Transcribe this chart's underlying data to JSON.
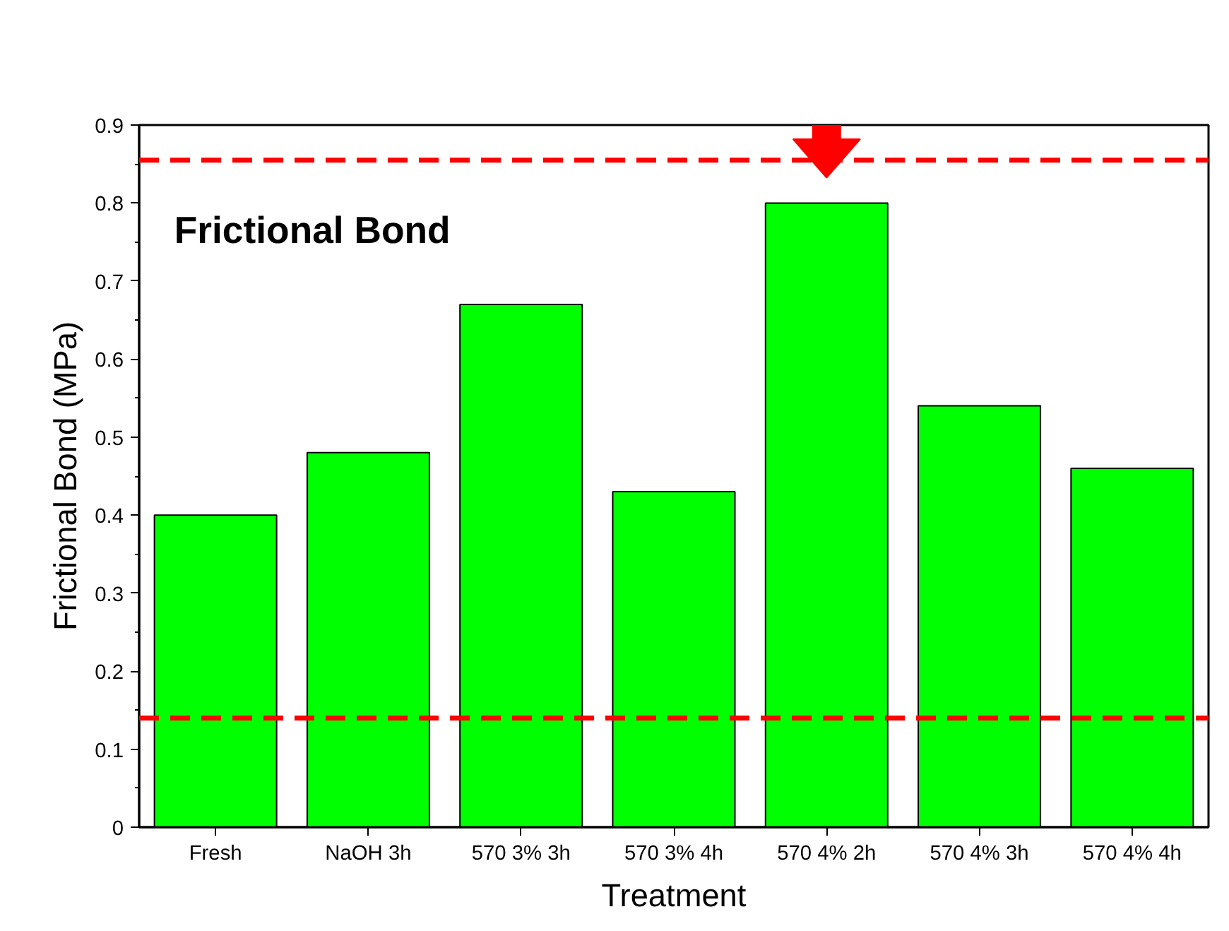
{
  "chart_data": {
    "type": "bar",
    "xlabel": "Treatment",
    "ylabel": "Frictional Bond (MPa)",
    "annotations": [
      "Frictional Bond"
    ],
    "categories": [
      "Fresh",
      "NaOH 3h",
      "570 3% 3h",
      "570 3% 4h",
      "570 4% 2h",
      "570 4% 3h",
      "570 4% 4h"
    ],
    "values": [
      0.4,
      0.48,
      0.67,
      0.43,
      0.8,
      0.54,
      0.46
    ],
    "color": "#00ff00",
    "ylim": [
      0,
      0.9
    ],
    "yticks": [
      0,
      0.1,
      0.2,
      0.3,
      0.4,
      0.5,
      0.6,
      0.7,
      0.8,
      0.9
    ],
    "ref_lines": [
      {
        "axis": "y",
        "value": 0.855,
        "color": "#ff0000",
        "line_style": "dashed"
      },
      {
        "axis": "y",
        "value": 0.14,
        "color": "#ff0000",
        "line_style": "dashed"
      }
    ],
    "grid": false
  }
}
